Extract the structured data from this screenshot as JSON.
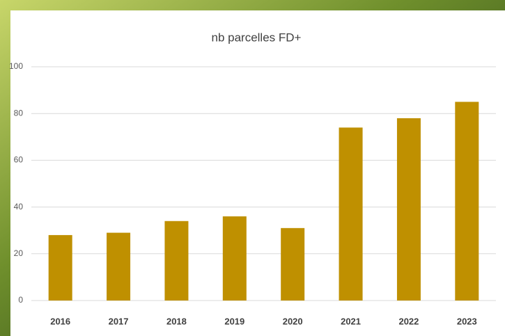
{
  "chart_data": {
    "type": "bar",
    "title": "nb parcelles FD+",
    "categories": [
      "2016",
      "2017",
      "2018",
      "2019",
      "2020",
      "2021",
      "2022",
      "2023"
    ],
    "values": [
      28,
      29,
      34,
      36,
      31,
      74,
      78,
      85
    ],
    "color": "#bf9000",
    "ylim": [
      0,
      100
    ],
    "yticks": [
      0,
      20,
      40,
      60,
      80,
      100
    ],
    "grid": true
  }
}
